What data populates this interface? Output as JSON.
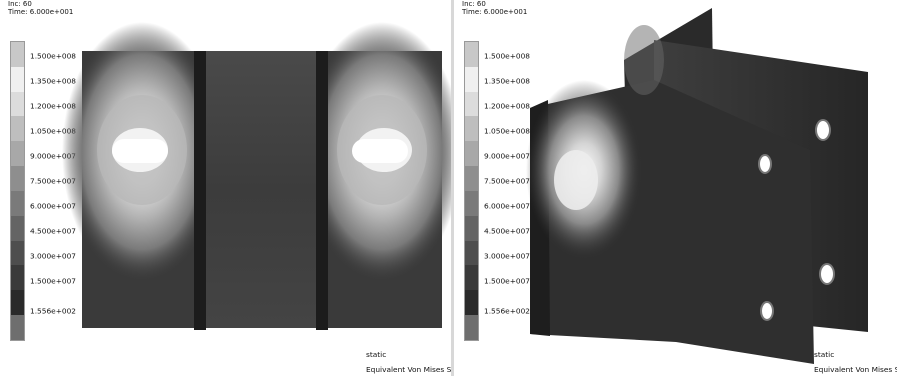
{
  "left": {
    "inc_label": "Inc:  60",
    "time_label": "Time:  6.000e+001",
    "legend": [
      "1.500e+008",
      "1.350e+008",
      "1.200e+008",
      "1.050e+008",
      "9.000e+007",
      "7.500e+007",
      "6.000e+007",
      "4.500e+007",
      "3.000e+007",
      "1.500e+007",
      "1.556e+002"
    ],
    "loadcase": "static",
    "result_label": "Equivalent Von Mises Stres"
  },
  "right": {
    "inc_label": "Inc:  60",
    "time_label": "Time:  6.000e+001",
    "legend": [
      "1.500e+008",
      "1.350e+008",
      "1.200e+008",
      "1.050e+008",
      "9.000e+007",
      "7.500e+007",
      "6.000e+007",
      "4.500e+007",
      "3.000e+007",
      "1.500e+007",
      "1.556e+002"
    ],
    "loadcase": "static",
    "result_label": "Equivalent Von Mises Stres"
  },
  "legend_colors": [
    "#c8c8c8",
    "#f0f0f0",
    "#dcdcdc",
    "#bebebe",
    "#a8a8a8",
    "#8e8e8e",
    "#7a7a7a",
    "#646464",
    "#4e4e4e",
    "#3a3a3a",
    "#2a2a2a",
    "#6e6e6e"
  ]
}
